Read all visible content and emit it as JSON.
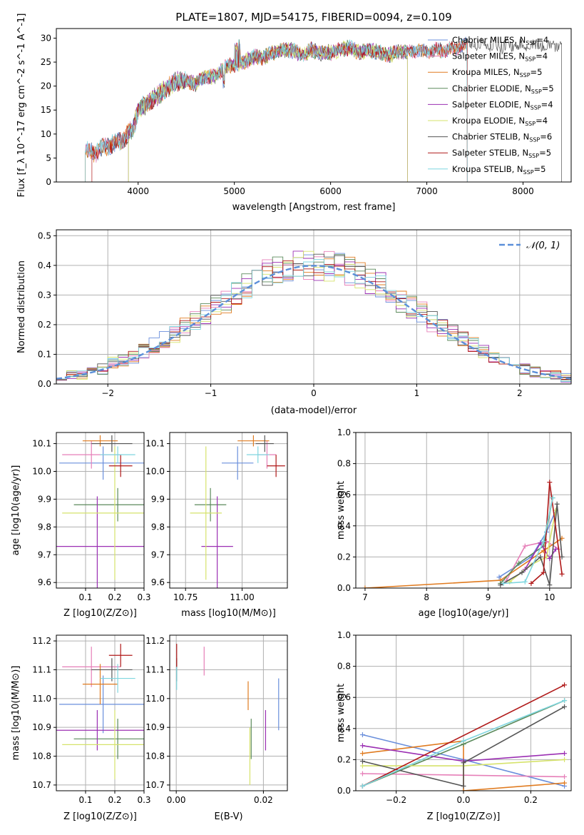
{
  "figure_title": "PLATE=1807, MJD=54175, FIBERID=0094, z=0.109",
  "colors": {
    "chabrier_miles": "#6a8fdc",
    "salpeter_miles": "#e67fb8",
    "kroupa_miles": "#e07b20",
    "chabrier_elodie": "#5b8a5b",
    "salpeter_elodie": "#9b2fb3",
    "kroupa_elodie": "#d6e36b",
    "chabrier_stelib": "#555555",
    "salpeter_stelib": "#b01818",
    "kroupa_stelib": "#7fd6df",
    "normal_curve": "#5b8fd9",
    "grid": "#b0b0b0"
  },
  "chart_data": [
    {
      "type": "line",
      "title": "PLATE=1807, MJD=54175, FIBERID=0094, z=0.109",
      "xlabel": "wavelength [Angstrom, rest frame]",
      "ylabel": "Flux [f_λ 10^-17 erg cm^-2 s^-1 A^-1]",
      "xlim": [
        3150,
        8500
      ],
      "ylim": [
        0,
        32
      ],
      "xticks": [
        "4000",
        "5000",
        "6000",
        "7000",
        "8000"
      ],
      "yticks": [
        "0",
        "5",
        "10",
        "15",
        "20",
        "25",
        "30"
      ],
      "grid": false,
      "legend_position": "top-right",
      "spectrum_anchor_points": {
        "x": [
          3450,
          3550,
          3650,
          3750,
          3850,
          3950,
          4000,
          4100,
          4200,
          4300,
          4400,
          4500,
          4600,
          4700,
          4800,
          4900,
          5000,
          5100,
          5200,
          5300,
          5400,
          5500,
          5600,
          5700,
          5800,
          5900,
          6000,
          6100,
          6200,
          6300,
          6400,
          6500,
          6600,
          6700,
          6800,
          6900,
          7000,
          7100,
          7200,
          7300,
          7400
        ],
        "y": [
          6.5,
          6.0,
          7.5,
          8.0,
          9.0,
          11.0,
          15.0,
          16.5,
          18.0,
          19.5,
          21.0,
          21.0,
          20.5,
          22.0,
          22.0,
          24.0,
          24.5,
          25.0,
          26.0,
          26.0,
          27.0,
          27.5,
          27.5,
          26.5,
          27.5,
          27.0,
          27.0,
          27.5,
          28.0,
          27.0,
          27.5,
          27.0,
          26.5,
          27.0,
          27.0,
          27.5,
          27.0,
          27.5,
          27.5,
          28.0,
          28.5
        ]
      },
      "series": [
        {
          "name": "Chabrier MILES, N_SSP=4",
          "legend_prefix": "Chabrier MILES, N",
          "legend_sub": "SSP",
          "legend_suffix": "=4",
          "x_range": [
            3450,
            7420
          ]
        },
        {
          "name": "Salpeter MILES, N_SSP=4",
          "legend_prefix": "Salpeter MILES, N",
          "legend_sub": "SSP",
          "legend_suffix": "=4",
          "x_range": [
            3450,
            7420
          ]
        },
        {
          "name": "Kroupa MILES, N_SSP=5",
          "legend_prefix": "Kroupa MILES, N",
          "legend_sub": "SSP",
          "legend_suffix": "=5",
          "x_range": [
            3450,
            7420
          ]
        },
        {
          "name": "Chabrier ELODIE, N_SSP=5",
          "legend_prefix": "Chabrier ELODIE, N",
          "legend_sub": "SSP",
          "legend_suffix": "=5",
          "x_range": [
            3900,
            6800
          ]
        },
        {
          "name": "Salpeter ELODIE, N_SSP=4",
          "legend_prefix": "Salpeter ELODIE, N",
          "legend_sub": "SSP",
          "legend_suffix": "=4",
          "x_range": [
            3900,
            6800
          ]
        },
        {
          "name": "Kroupa ELODIE, N_SSP=4",
          "legend_prefix": "Kroupa ELODIE, N",
          "legend_sub": "SSP",
          "legend_suffix": "=4",
          "x_range": [
            3900,
            6800
          ]
        },
        {
          "name": "Chabrier STELIB, N_SSP=6",
          "legend_prefix": "Chabrier STELIB, N",
          "legend_sub": "SSP",
          "legend_suffix": "=6",
          "x_range": [
            3450,
            8400
          ]
        },
        {
          "name": "Salpeter STELIB, N_SSP=5",
          "legend_prefix": "Salpeter STELIB, N",
          "legend_sub": "SSP",
          "legend_suffix": "=5",
          "x_range": [
            3520,
            7420
          ]
        },
        {
          "name": "Kroupa STELIB, N_SSP=5",
          "legend_prefix": "Kroupa STELIB, N",
          "legend_sub": "SSP",
          "legend_suffix": "=5",
          "x_range": [
            3450,
            7420
          ]
        }
      ]
    },
    {
      "type": "line",
      "xlabel": "(data-model)/error",
      "ylabel": "Normed distribution",
      "xlim": [
        -2.5,
        2.5
      ],
      "ylim": [
        0,
        0.52
      ],
      "xticks": [
        "−2",
        "−1",
        "0",
        "1",
        "2"
      ],
      "yticks": [
        "0.0",
        "0.1",
        "0.2",
        "0.3",
        "0.4",
        "0.5"
      ],
      "grid": true,
      "legend_position": "top-right",
      "legend_label": "𝒩(0, 1)",
      "bin_edges_start": -2.5,
      "bin_width": 0.1,
      "histogram_envelope": [
        0.02,
        0.03,
        0.03,
        0.04,
        0.05,
        0.07,
        0.08,
        0.09,
        0.11,
        0.13,
        0.15,
        0.17,
        0.19,
        0.21,
        0.24,
        0.26,
        0.28,
        0.31,
        0.33,
        0.35,
        0.37,
        0.38,
        0.39,
        0.4,
        0.4,
        0.4,
        0.4,
        0.39,
        0.38,
        0.37,
        0.35,
        0.33,
        0.31,
        0.28,
        0.26,
        0.24,
        0.21,
        0.19,
        0.17,
        0.15,
        0.13,
        0.11,
        0.09,
        0.08,
        0.07,
        0.05,
        0.04,
        0.03,
        0.03,
        0.02
      ]
    },
    {
      "type": "scatter",
      "xlabel": "Z [log10(Z/Z⊙)]",
      "ylabel": "age [log10(age/yr)]",
      "xlim": [
        0.0,
        0.3
      ],
      "ylim": [
        9.58,
        10.14
      ],
      "xticks": [
        "0.1",
        "0.2",
        "0.3"
      ],
      "yticks": [
        "9.6",
        "9.7",
        "9.8",
        "9.9",
        "10.0",
        "10.1"
      ],
      "grid": true,
      "points": [
        {
          "series": "Chabrier MILES",
          "x": 0.16,
          "y": 10.03,
          "xerr": 0.15,
          "yerr": 0.06
        },
        {
          "series": "Salpeter MILES",
          "x": 0.12,
          "y": 10.06,
          "xerr": 0.1,
          "yerr": 0.05
        },
        {
          "series": "Kroupa MILES",
          "x": 0.15,
          "y": 10.11,
          "xerr": 0.06,
          "yerr": 0.02
        },
        {
          "series": "Chabrier ELODIE",
          "x": 0.21,
          "y": 9.88,
          "xerr": 0.15,
          "yerr": 0.06
        },
        {
          "series": "Salpeter ELODIE",
          "x": 0.14,
          "y": 9.73,
          "xerr": 0.16,
          "yerr": 0.18
        },
        {
          "series": "Kroupa ELODIE",
          "x": 0.2,
          "y": 9.85,
          "xerr": 0.18,
          "yerr": 0.24
        },
        {
          "series": "Chabrier STELIB",
          "x": 0.19,
          "y": 10.1,
          "xerr": 0.07,
          "yerr": 0.03
        },
        {
          "series": "Salpeter STELIB",
          "x": 0.22,
          "y": 10.02,
          "xerr": 0.04,
          "yerr": 0.04
        },
        {
          "series": "Kroupa STELIB",
          "x": 0.21,
          "y": 10.06,
          "xerr": 0.06,
          "yerr": 0.03
        }
      ]
    },
    {
      "type": "scatter",
      "xlabel": "mass [log10(M/M⊙)]",
      "ylabel": "",
      "xlim": [
        10.68,
        11.2
      ],
      "ylim": [
        9.58,
        10.14
      ],
      "xticks": [
        "10.75",
        "11.00"
      ],
      "yticks": [
        "9.6",
        "9.7",
        "9.8",
        "9.9",
        "10.0",
        "10.1"
      ],
      "grid": true,
      "points": [
        {
          "series": "Chabrier MILES",
          "x": 10.98,
          "y": 10.03,
          "xerr": 0.07,
          "yerr": 0.06
        },
        {
          "series": "Salpeter MILES",
          "x": 11.11,
          "y": 10.06,
          "xerr": 0.04,
          "yerr": 0.05
        },
        {
          "series": "Kroupa MILES",
          "x": 11.05,
          "y": 10.11,
          "xerr": 0.07,
          "yerr": 0.02
        },
        {
          "series": "Chabrier ELODIE",
          "x": 10.86,
          "y": 9.88,
          "xerr": 0.07,
          "yerr": 0.06
        },
        {
          "series": "Salpeter ELODIE",
          "x": 10.89,
          "y": 9.73,
          "xerr": 0.07,
          "yerr": 0.18
        },
        {
          "series": "Kroupa ELODIE",
          "x": 10.84,
          "y": 9.85,
          "xerr": 0.07,
          "yerr": 0.24
        },
        {
          "series": "Chabrier STELIB",
          "x": 11.1,
          "y": 10.1,
          "xerr": 0.04,
          "yerr": 0.03
        },
        {
          "series": "Salpeter STELIB",
          "x": 11.15,
          "y": 10.02,
          "xerr": 0.04,
          "yerr": 0.04
        },
        {
          "series": "Kroupa STELIB",
          "x": 11.07,
          "y": 10.06,
          "xerr": 0.05,
          "yerr": 0.03
        }
      ]
    },
    {
      "type": "line",
      "xlabel": "age [log10(age/yr)]",
      "ylabel": "mass weight",
      "xlim": [
        6.85,
        10.35
      ],
      "ylim": [
        0,
        1.0
      ],
      "xticks": [
        "7",
        "8",
        "9",
        "10"
      ],
      "yticks": [
        "0.0",
        "0.2",
        "0.4",
        "0.6",
        "0.8",
        "1.0"
      ],
      "grid": true,
      "series": [
        {
          "name": "Chabrier MILES",
          "x": [
            9.18,
            9.7,
            9.95,
            10.1
          ],
          "y": [
            0.07,
            0.2,
            0.36,
            0.5
          ]
        },
        {
          "name": "Salpeter MILES",
          "x": [
            9.3,
            9.6,
            9.95,
            10.15
          ],
          "y": [
            0.05,
            0.27,
            0.3,
            0.25
          ]
        },
        {
          "name": "Kroupa MILES",
          "x": [
            7.0,
            9.2,
            9.9,
            10.2
          ],
          "y": [
            0.0,
            0.05,
            0.24,
            0.32
          ]
        },
        {
          "name": "Chabrier ELODIE",
          "x": [
            9.2,
            9.5,
            9.9,
            10.05
          ],
          "y": [
            0.03,
            0.16,
            0.27,
            0.58
          ]
        },
        {
          "name": "Salpeter ELODIE",
          "x": [
            9.6,
            9.85,
            10.0,
            10.1
          ],
          "y": [
            0.12,
            0.29,
            0.19,
            0.25
          ]
        },
        {
          "name": "Kroupa ELODIE",
          "x": [
            9.35,
            9.7,
            9.95,
            10.1
          ],
          "y": [
            0.04,
            0.15,
            0.2,
            0.5
          ]
        },
        {
          "name": "Chabrier STELIB",
          "x": [
            9.2,
            9.55,
            9.85,
            10.0,
            10.12,
            10.2
          ],
          "y": [
            0.02,
            0.1,
            0.2,
            0.02,
            0.54,
            0.2
          ]
        },
        {
          "name": "Salpeter STELIB",
          "x": [
            9.7,
            9.9,
            10.0,
            10.2
          ],
          "y": [
            0.03,
            0.1,
            0.68,
            0.09
          ]
        },
        {
          "name": "Kroupa STELIB",
          "x": [
            9.25,
            9.6,
            9.9,
            10.05
          ],
          "y": [
            0.03,
            0.04,
            0.3,
            0.58
          ]
        }
      ]
    },
    {
      "type": "scatter",
      "xlabel": "Z [log10(Z/Z⊙)]",
      "ylabel": "mass [log10(M/M⊙)]",
      "xlim": [
        0.0,
        0.3
      ],
      "ylim": [
        10.68,
        11.22
      ],
      "xticks": [
        "0.1",
        "0.2",
        "0.3"
      ],
      "yticks": [
        "10.7",
        "10.8",
        "10.9",
        "11.0",
        "11.1",
        "11.2"
      ],
      "grid": true,
      "points": [
        {
          "series": "Chabrier MILES",
          "x": 0.16,
          "y": 10.98,
          "xerr": 0.15,
          "yerr": 0.1
        },
        {
          "series": "Salpeter MILES",
          "x": 0.12,
          "y": 11.11,
          "xerr": 0.1,
          "yerr": 0.07
        },
        {
          "series": "Kroupa MILES",
          "x": 0.15,
          "y": 11.05,
          "xerr": 0.06,
          "yerr": 0.07
        },
        {
          "series": "Chabrier ELODIE",
          "x": 0.21,
          "y": 10.86,
          "xerr": 0.15,
          "yerr": 0.07
        },
        {
          "series": "Salpeter ELODIE",
          "x": 0.14,
          "y": 10.89,
          "xerr": 0.16,
          "yerr": 0.07
        },
        {
          "series": "Kroupa ELODIE",
          "x": 0.2,
          "y": 10.84,
          "xerr": 0.18,
          "yerr": 0.12
        },
        {
          "series": "Chabrier STELIB",
          "x": 0.19,
          "y": 11.1,
          "xerr": 0.07,
          "yerr": 0.04
        },
        {
          "series": "Salpeter STELIB",
          "x": 0.22,
          "y": 11.15,
          "xerr": 0.04,
          "yerr": 0.04
        },
        {
          "series": "Kroupa STELIB",
          "x": 0.21,
          "y": 11.07,
          "xerr": 0.06,
          "yerr": 0.05
        }
      ]
    },
    {
      "type": "scatter",
      "xlabel": "E(B-V)",
      "ylabel": "",
      "xlim": [
        -0.0015,
        0.0255
      ],
      "ylim": [
        10.68,
        11.22
      ],
      "xticks": [
        "0.00",
        "0.02"
      ],
      "yticks": [
        "10.7",
        "10.8",
        "10.9",
        "11.0",
        "11.1",
        "11.2"
      ],
      "grid": true,
      "points": [
        {
          "series": "Chabrier MILES",
          "x": 0.0235,
          "y": 10.98,
          "yerr": 0.09
        },
        {
          "series": "Salpeter MILES",
          "x": 0.0064,
          "y": 11.13,
          "yerr": 0.05
        },
        {
          "series": "Kroupa MILES",
          "x": 0.0165,
          "y": 11.01,
          "yerr": 0.05
        },
        {
          "series": "Chabrier ELODIE",
          "x": 0.0172,
          "y": 10.86,
          "yerr": 0.07
        },
        {
          "series": "Salpeter ELODIE",
          "x": 0.0205,
          "y": 10.89,
          "yerr": 0.07
        },
        {
          "series": "Kroupa ELODIE",
          "x": 0.0169,
          "y": 10.8,
          "yerr": 0.1
        },
        {
          "series": "Chabrier STELIB",
          "x": 0.0001,
          "y": 11.1,
          "yerr": 0.04
        },
        {
          "series": "Salpeter STELIB",
          "x": 0.0001,
          "y": 11.15,
          "yerr": 0.04
        },
        {
          "series": "Kroupa STELIB",
          "x": 0.0001,
          "y": 11.07,
          "yerr": 0.04
        }
      ]
    },
    {
      "type": "line",
      "xlabel": "Z [log10(Z/Z⊙)]",
      "ylabel": "mass weight",
      "xlim": [
        -0.32,
        0.32
      ],
      "ylim": [
        0,
        1.0
      ],
      "xticks": [
        "−0.2",
        "0.0",
        "0.2"
      ],
      "yticks": [
        "0.0",
        "0.2",
        "0.4",
        "0.6",
        "0.8",
        "1.0"
      ],
      "grid": true,
      "series": [
        {
          "name": "Chabrier MILES",
          "x": [
            -0.3,
            0.0,
            0.3
          ],
          "y": [
            0.36,
            0.2,
            0.03
          ]
        },
        {
          "name": "Salpeter MILES",
          "x": [
            -0.3,
            0.0,
            0.3
          ],
          "y": [
            0.11,
            0.1,
            0.09
          ]
        },
        {
          "name": "Kroupa MILES",
          "x": [
            -0.3,
            0.0,
            0.0,
            0.3
          ],
          "y": [
            0.24,
            0.32,
            0.0,
            0.05
          ]
        },
        {
          "name": "Chabrier ELODIE",
          "x": [
            -0.3,
            0.0,
            0.3
          ],
          "y": [
            0.03,
            0.3,
            0.58
          ]
        },
        {
          "name": "Salpeter ELODIE",
          "x": [
            -0.3,
            0.0,
            0.3
          ],
          "y": [
            0.29,
            0.19,
            0.24
          ]
        },
        {
          "name": "Kroupa ELODIE",
          "x": [
            -0.3,
            0.0,
            0.3
          ],
          "y": [
            0.16,
            0.16,
            0.2
          ]
        },
        {
          "name": "Chabrier STELIB",
          "x": [
            -0.3,
            0.0,
            0.0,
            0.3
          ],
          "y": [
            0.19,
            0.03,
            0.18,
            0.54
          ]
        },
        {
          "name": "Salpeter STELIB",
          "x": [
            -0.3,
            0.3
          ],
          "y": [
            0.03,
            0.68
          ]
        },
        {
          "name": "Kroupa STELIB",
          "x": [
            -0.3,
            0.0,
            0.3
          ],
          "y": [
            0.03,
            0.32,
            0.58
          ]
        }
      ]
    }
  ]
}
